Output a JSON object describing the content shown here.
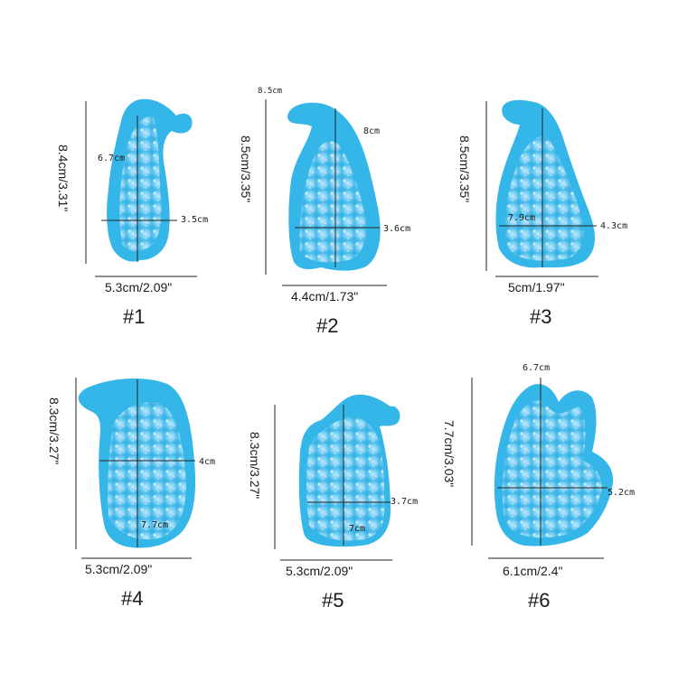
{
  "colors": {
    "mold": "#35b6e8",
    "mold_dark": "#1d8fc4",
    "mold_light": "#8fdcff",
    "line": "#222222"
  },
  "molds": [
    {
      "number": "#1",
      "width": "5.3cm/2.09\"",
      "height": "8.4cm/3.31\"",
      "inner_a": "6.7cm",
      "inner_b": "3.5cm"
    },
    {
      "number": "#2",
      "width": "4.4cm/1.73\"",
      "height": "8.5cm/3.35\"",
      "top_note": "8.5cm",
      "inner_a": "8cm",
      "inner_b": "3.6cm"
    },
    {
      "number": "#3",
      "width": "5cm/1.97\"",
      "height": "8.5cm/3.35\"",
      "inner_a": "7.9cm",
      "inner_b": "4.3cm"
    },
    {
      "number": "#4",
      "width": "5.3cm/2.09\"",
      "height": "8.3cm/3.27\"",
      "inner_a": "4cm",
      "inner_b": "7.7cm"
    },
    {
      "number": "#5",
      "width": "5.3cm/2.09\"",
      "height": "8.3cm/3.27\"",
      "inner_a": "3.7cm",
      "inner_b": "7cm"
    },
    {
      "number": "#6",
      "width": "6.1cm/2.4\"",
      "height": "7.7cm/3.03\"",
      "inner_a": "6.7cm",
      "inner_b": "5.2cm"
    }
  ]
}
